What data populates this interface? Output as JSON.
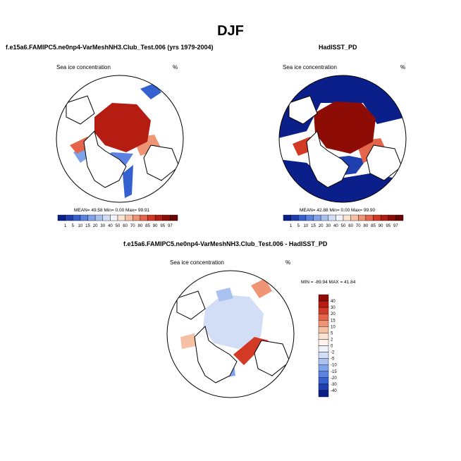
{
  "figure": {
    "title": "DJF"
  },
  "panels": [
    {
      "title": "f.e15a6.FAMIPC5.ne0np4-VarMeshNH3.Club_Test.006 (yrs 1979-2004)",
      "variable": "Sea ice concentration",
      "units": "%",
      "stats": "MEAN=  49.58  Min=   0.00  Max=  99.91"
    },
    {
      "title": "HadISST_PD",
      "variable": "Sea ice concentration",
      "units": "%",
      "stats": "MEAN=  42.88  Min=   0.00  Max=  99.90"
    },
    {
      "title": "f.e15a6.FAMIPC5.ne0np4-VarMeshNH3.Club_Test.006 - HadISST_PD",
      "variable": "Sea ice concentration",
      "units": "%",
      "stats": "MIN = -89.94 MAX =  41.84"
    }
  ],
  "colorbar_abs": {
    "levels": [
      "1",
      "5",
      "10",
      "15",
      "20",
      "30",
      "40",
      "50",
      "60",
      "70",
      "80",
      "85",
      "90",
      "95",
      "97"
    ],
    "colors": [
      "#0b1f8a",
      "#1f3fb0",
      "#3560d0",
      "#5a82e0",
      "#7fa3ea",
      "#a9c2f0",
      "#d2def6",
      "#f1f3fa",
      "#fbe3d4",
      "#f6c0a4",
      "#ef9474",
      "#e5654a",
      "#d33a26",
      "#b51d12",
      "#8e0c06",
      "#6a0400"
    ]
  },
  "colorbar_diff": {
    "levels": [
      "40",
      "30",
      "20",
      "15",
      "10",
      "5",
      "2",
      "0",
      "-2",
      "-5",
      "-10",
      "-15",
      "-20",
      "-30",
      "-40"
    ],
    "colors": [
      "#8e0c06",
      "#b51d12",
      "#d33a26",
      "#e5654a",
      "#ef9474",
      "#f6c0a4",
      "#fbe3d4",
      "#fdf3ec",
      "#eef2fb",
      "#d2def6",
      "#a9c2f0",
      "#7fa3ea",
      "#5a82e0",
      "#3560d0",
      "#1f3fb0",
      "#0b1f8a"
    ]
  }
}
